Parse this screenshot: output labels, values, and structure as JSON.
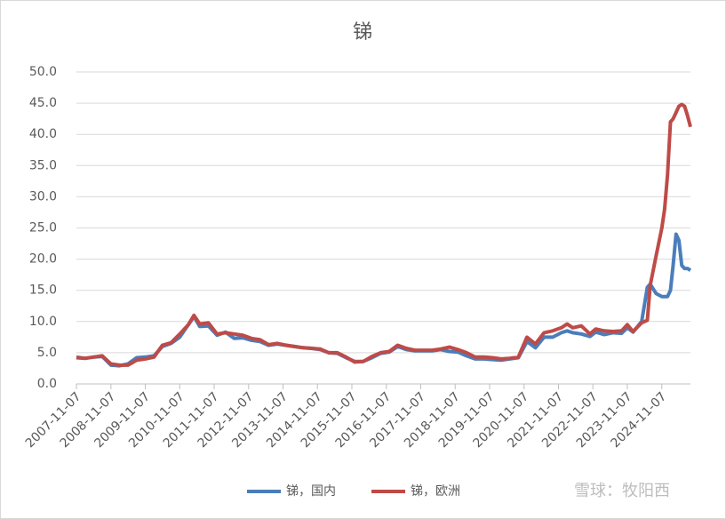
{
  "chart_data": {
    "type": "line",
    "title": "锑",
    "x": [
      "2007-11-07",
      "2008-02-07",
      "2008-05-07",
      "2008-08-07",
      "2008-11-07",
      "2009-02-07",
      "2009-05-07",
      "2009-08-07",
      "2009-11-07",
      "2010-02-07",
      "2010-05-07",
      "2010-08-07",
      "2010-11-07",
      "2011-02-07",
      "2011-04-07",
      "2011-06-07",
      "2011-09-07",
      "2011-12-07",
      "2012-03-07",
      "2012-06-07",
      "2012-09-07",
      "2012-12-07",
      "2013-03-07",
      "2013-06-07",
      "2013-09-07",
      "2013-12-07",
      "2014-03-07",
      "2014-06-07",
      "2014-09-07",
      "2014-12-07",
      "2015-03-07",
      "2015-06-07",
      "2015-09-07",
      "2015-12-07",
      "2016-03-07",
      "2016-06-07",
      "2016-09-07",
      "2016-12-07",
      "2017-03-07",
      "2017-06-07",
      "2017-09-07",
      "2017-12-07",
      "2018-03-07",
      "2018-06-07",
      "2018-09-07",
      "2018-12-07",
      "2019-03-07",
      "2019-06-07",
      "2019-09-07",
      "2019-12-07",
      "2020-03-07",
      "2020-06-07",
      "2020-09-07",
      "2020-12-07",
      "2021-03-07",
      "2021-06-07",
      "2021-09-07",
      "2021-12-07",
      "2022-02-07",
      "2022-04-07",
      "2022-07-07",
      "2022-10-07",
      "2022-12-07",
      "2023-03-07",
      "2023-06-07",
      "2023-09-07",
      "2023-11-07",
      "2024-01-07",
      "2024-04-07",
      "2024-06-07",
      "2024-07-07",
      "2024-09-07",
      "2024-11-07",
      "2024-12-07",
      "2025-01-07",
      "2025-02-07",
      "2025-03-07",
      "2025-04-07",
      "2025-05-07",
      "2025-06-07",
      "2025-07-07",
      "2025-08-07",
      "2025-09-07"
    ],
    "series": [
      {
        "name": "锑，国内",
        "color": "#4a7ebb",
        "values": [
          4.3,
          4.1,
          4.3,
          4.4,
          3.0,
          2.9,
          3.2,
          4.2,
          4.3,
          4.5,
          6.0,
          6.5,
          7.5,
          9.5,
          10.8,
          9.2,
          9.3,
          7.8,
          8.3,
          7.3,
          7.4,
          7.0,
          6.8,
          6.2,
          6.4,
          6.2,
          6.0,
          5.8,
          5.7,
          5.5,
          5.0,
          4.9,
          4.2,
          3.6,
          3.6,
          4.2,
          4.9,
          5.1,
          6.0,
          5.5,
          5.3,
          5.3,
          5.3,
          5.5,
          5.2,
          5.1,
          4.5,
          4.0,
          4.0,
          3.9,
          3.8,
          4.0,
          4.2,
          6.8,
          5.8,
          7.5,
          7.5,
          8.2,
          8.5,
          8.2,
          8.0,
          7.6,
          8.3,
          7.9,
          8.2,
          8.1,
          9.0,
          8.3,
          10.0,
          15.5,
          16.0,
          14.5,
          14.0,
          14.0,
          14.0,
          15.0,
          19.0,
          24.0,
          23.0,
          19.0,
          18.5,
          18.5,
          18.2
        ]
      },
      {
        "name": "锑，欧洲",
        "color": "#be4b48",
        "values": [
          4.2,
          4.1,
          4.3,
          4.5,
          3.2,
          3.0,
          3.0,
          3.8,
          4.0,
          4.3,
          6.2,
          6.6,
          8.0,
          9.5,
          11.0,
          9.6,
          9.8,
          8.0,
          8.2,
          8.0,
          7.8,
          7.3,
          7.1,
          6.3,
          6.5,
          6.2,
          6.0,
          5.8,
          5.7,
          5.6,
          5.0,
          5.0,
          4.3,
          3.5,
          3.6,
          4.4,
          5.0,
          5.2,
          6.2,
          5.7,
          5.4,
          5.4,
          5.4,
          5.6,
          5.9,
          5.5,
          5.0,
          4.3,
          4.3,
          4.2,
          4.0,
          4.1,
          4.3,
          7.5,
          6.4,
          8.2,
          8.5,
          9.0,
          9.6,
          9.0,
          9.3,
          8.0,
          8.8,
          8.5,
          8.4,
          8.5,
          9.5,
          8.4,
          9.8,
          10.2,
          15.8,
          20.5,
          25.0,
          28.0,
          33.5,
          42.0,
          42.5,
          43.5,
          44.5,
          44.8,
          44.5,
          43.0,
          41.2
        ]
      }
    ],
    "xlim": [
      "2007-11-07",
      "2025-09-07"
    ],
    "xticks": [
      "2007-11-07",
      "2008-11-07",
      "2009-11-07",
      "2010-11-07",
      "2011-11-07",
      "2012-11-07",
      "2013-11-07",
      "2014-11-07",
      "2015-11-07",
      "2016-11-07",
      "2017-11-07",
      "2018-11-07",
      "2019-11-07",
      "2020-11-07",
      "2021-11-07",
      "2022-11-07",
      "2023-11-07",
      "2024-11-07"
    ],
    "ylim": [
      0,
      50
    ],
    "yticks": [
      {
        "value": 0,
        "label": "0.0"
      },
      {
        "value": 5,
        "label": "5.0"
      },
      {
        "value": 10,
        "label": "10.0"
      },
      {
        "value": 15,
        "label": "15.0"
      },
      {
        "value": 20,
        "label": "20.0"
      },
      {
        "value": 25,
        "label": "25.0"
      },
      {
        "value": 30,
        "label": "30.0"
      },
      {
        "value": 35,
        "label": "35.0"
      },
      {
        "value": 40,
        "label": "40.0"
      },
      {
        "value": 45,
        "label": "45.0"
      },
      {
        "value": 50,
        "label": "50.0"
      }
    ],
    "grid": true,
    "legend": "bottom",
    "watermark": "雪球：牧阳西"
  }
}
